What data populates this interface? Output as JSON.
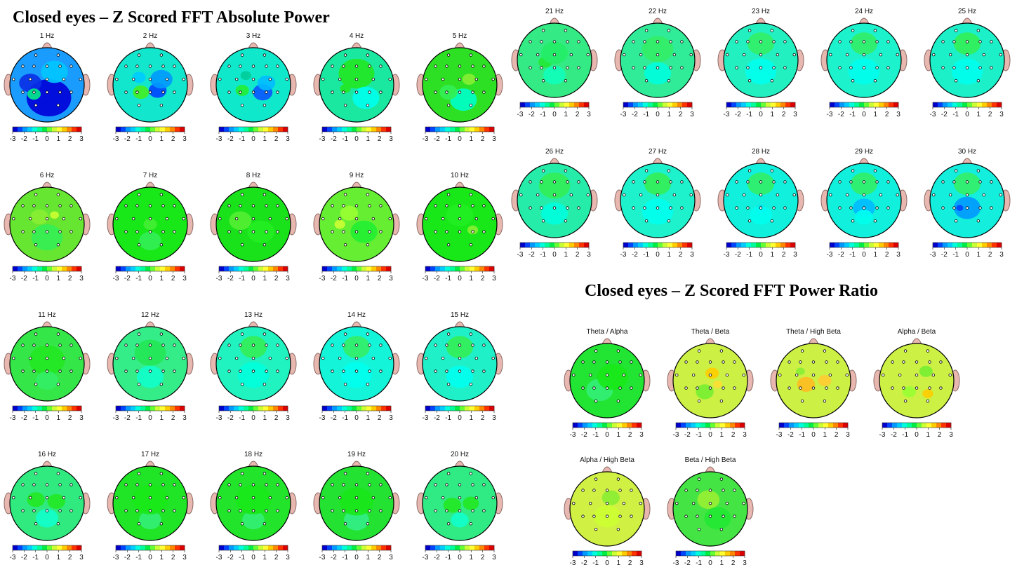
{
  "titles": {
    "absolute_power": "Closed eyes – Z Scored FFT Absolute Power",
    "power_ratio": "Closed eyes – Z Scored FFT Power Ratio"
  },
  "colorbar": {
    "ticks": [
      "-3",
      "-2",
      "-1",
      "0",
      "1",
      "2",
      "3"
    ],
    "colors": [
      "#0000cc",
      "#0044ff",
      "#0099ff",
      "#00ccff",
      "#00ffdd",
      "#00ff99",
      "#00ee44",
      "#66ff33",
      "#ccff33",
      "#ffff33",
      "#ffcc00",
      "#ff8800",
      "#ff3300",
      "#dd0000"
    ]
  },
  "colors": {
    "head_fill": "#22ee66",
    "head_outline": "#000000",
    "ear_fill": "#e8b8b0",
    "ear_outline": "#8a6b66",
    "electrode_fill": "#ffffff"
  },
  "absolute_power_maps": [
    {
      "label": "1 Hz",
      "base": "#1a9cff",
      "blobs": [
        {
          "c": "#0000d8",
          "dx": 0.05,
          "dy": 0.35,
          "r": 0.5
        },
        {
          "c": "#0a2fe6",
          "dx": -0.45,
          "dy": -0.05,
          "r": 0.25
        },
        {
          "c": "#00ee88",
          "dx": -0.35,
          "dy": 0.25,
          "r": 0.15
        },
        {
          "c": "#00c8ff",
          "dx": 0.2,
          "dy": -0.35,
          "r": 0.3
        }
      ]
    },
    {
      "label": "2 Hz",
      "base": "#12e6cc",
      "blobs": [
        {
          "c": "#0044ff",
          "dx": 0.2,
          "dy": 0.15,
          "r": 0.2
        },
        {
          "c": "#44ee22",
          "dx": -0.25,
          "dy": 0.2,
          "r": 0.18
        },
        {
          "c": "#0099ff",
          "dx": 0.3,
          "dy": -0.15,
          "r": 0.25
        },
        {
          "c": "#00ccff",
          "dx": -0.3,
          "dy": -0.2,
          "r": 0.15
        }
      ]
    },
    {
      "label": "3 Hz",
      "base": "#10e8cc",
      "blobs": [
        {
          "c": "#0a55ff",
          "dx": 0.25,
          "dy": 0.2,
          "r": 0.22
        },
        {
          "c": "#22ee33",
          "dx": -0.3,
          "dy": 0.15,
          "r": 0.15
        },
        {
          "c": "#00bbff",
          "dx": 0.35,
          "dy": -0.05,
          "r": 0.2
        },
        {
          "c": "#00cc99",
          "dx": -0.2,
          "dy": -0.25,
          "r": 0.12
        }
      ]
    },
    {
      "label": "4 Hz",
      "base": "#1ae8a0",
      "blobs": [
        {
          "c": "#22e822",
          "dx": 0.0,
          "dy": -0.3,
          "r": 0.4
        },
        {
          "c": "#00ffee",
          "dx": 0.25,
          "dy": 0.35,
          "r": 0.3
        },
        {
          "c": "#22e822",
          "dx": -0.3,
          "dy": 0.1,
          "r": 0.12
        }
      ]
    },
    {
      "label": "5 Hz",
      "base": "#2ee024",
      "blobs": [
        {
          "c": "#88ee33",
          "dx": 0.25,
          "dy": -0.15,
          "r": 0.15
        },
        {
          "c": "#00ffcc",
          "dx": 0.1,
          "dy": 0.4,
          "r": 0.3
        },
        {
          "c": "#33f055",
          "dx": -0.3,
          "dy": 0.2,
          "r": 0.2
        }
      ]
    },
    {
      "label": "6 Hz",
      "base": "#66e630",
      "blobs": [
        {
          "c": "#ccff33",
          "dx": 0.2,
          "dy": -0.25,
          "r": 0.1
        },
        {
          "c": "#33ee55",
          "dx": 0.0,
          "dy": 0.35,
          "r": 0.35
        },
        {
          "c": "#88ee33",
          "dx": -0.2,
          "dy": -0.2,
          "r": 0.2
        }
      ]
    },
    {
      "label": "7 Hz",
      "base": "#18e818",
      "blobs": [
        {
          "c": "#44ee33",
          "dx": 0.0,
          "dy": 0.0,
          "r": 0.15
        },
        {
          "c": "#33ee55",
          "dx": 0.0,
          "dy": 0.45,
          "r": 0.25
        }
      ]
    },
    {
      "label": "8 Hz",
      "base": "#1ae21a",
      "blobs": [
        {
          "c": "#55ee33",
          "dx": -0.35,
          "dy": -0.1,
          "r": 0.25
        },
        {
          "c": "#22ee22",
          "dx": 0.2,
          "dy": 0.2,
          "r": 0.3
        }
      ]
    },
    {
      "label": "9 Hz",
      "base": "#66ee33",
      "blobs": [
        {
          "c": "#ccff33",
          "dx": -0.45,
          "dy": 0.0,
          "r": 0.12
        },
        {
          "c": "#22ee33",
          "dx": 0.2,
          "dy": 0.2,
          "r": 0.3
        },
        {
          "c": "#99ff33",
          "dx": -0.2,
          "dy": -0.3,
          "r": 0.2
        }
      ]
    },
    {
      "label": "10 Hz",
      "base": "#18e818",
      "blobs": [
        {
          "c": "#88ee33",
          "dx": 0.35,
          "dy": 0.15,
          "r": 0.12
        },
        {
          "c": "#22ee22",
          "dx": 0.0,
          "dy": -0.25,
          "r": 0.3
        }
      ]
    },
    {
      "label": "11 Hz",
      "base": "#34e648",
      "blobs": [
        {
          "c": "#22e822",
          "dx": 0.0,
          "dy": -0.1,
          "r": 0.4
        },
        {
          "c": "#33ee66",
          "dx": 0.0,
          "dy": 0.45,
          "r": 0.25
        }
      ]
    },
    {
      "label": "12 Hz",
      "base": "#34ec88",
      "blobs": [
        {
          "c": "#22e855",
          "dx": 0.0,
          "dy": -0.3,
          "r": 0.35
        },
        {
          "c": "#11ffcc",
          "dx": 0.0,
          "dy": 0.35,
          "r": 0.3
        }
      ]
    },
    {
      "label": "13 Hz",
      "base": "#20f2c0",
      "blobs": [
        {
          "c": "#33ee55",
          "dx": 0.0,
          "dy": -0.45,
          "r": 0.3
        },
        {
          "c": "#00ffdd",
          "dx": 0.0,
          "dy": 0.3,
          "r": 0.35
        }
      ]
    },
    {
      "label": "14 Hz",
      "base": "#14f4d8",
      "blobs": [
        {
          "c": "#33ee66",
          "dx": 0.0,
          "dy": -0.45,
          "r": 0.3
        },
        {
          "c": "#00ffee",
          "dx": 0.0,
          "dy": 0.3,
          "r": 0.35
        }
      ]
    },
    {
      "label": "15 Hz",
      "base": "#20f0c8",
      "blobs": [
        {
          "c": "#33ee55",
          "dx": 0.0,
          "dy": -0.45,
          "r": 0.3
        },
        {
          "c": "#00ffee",
          "dx": 0.0,
          "dy": 0.35,
          "r": 0.3
        }
      ]
    },
    {
      "label": "16 Hz",
      "base": "#30ea80",
      "blobs": [
        {
          "c": "#22e822",
          "dx": -0.3,
          "dy": -0.1,
          "r": 0.2
        },
        {
          "c": "#22e822",
          "dx": 0.25,
          "dy": -0.05,
          "r": 0.2
        },
        {
          "c": "#11ffcc",
          "dx": 0.0,
          "dy": 0.4,
          "r": 0.25
        }
      ]
    },
    {
      "label": "17 Hz",
      "base": "#20e426",
      "blobs": [
        {
          "c": "#33ee77",
          "dx": 0.0,
          "dy": 0.45,
          "r": 0.25
        },
        {
          "c": "#18e818",
          "dx": 0.0,
          "dy": -0.1,
          "r": 0.4
        }
      ]
    },
    {
      "label": "18 Hz",
      "base": "#22e42a",
      "blobs": [
        {
          "c": "#33ee77",
          "dx": 0.0,
          "dy": 0.45,
          "r": 0.25
        },
        {
          "c": "#18e818",
          "dx": 0.0,
          "dy": -0.1,
          "r": 0.4
        }
      ]
    },
    {
      "label": "19 Hz",
      "base": "#24e232",
      "blobs": [
        {
          "c": "#33ee88",
          "dx": 0.0,
          "dy": 0.45,
          "r": 0.28
        },
        {
          "c": "#18e818",
          "dx": 0.0,
          "dy": -0.05,
          "r": 0.38
        }
      ]
    },
    {
      "label": "20 Hz",
      "base": "#30ea84",
      "blobs": [
        {
          "c": "#22e822",
          "dx": -0.2,
          "dy": 0.05,
          "r": 0.2
        },
        {
          "c": "#22e822",
          "dx": 0.3,
          "dy": 0.0,
          "r": 0.18
        },
        {
          "c": "#11ffcc",
          "dx": 0.0,
          "dy": 0.45,
          "r": 0.2
        }
      ]
    },
    {
      "label": "21 Hz",
      "base": "#34ea84",
      "blobs": [
        {
          "c": "#22e833",
          "dx": -0.25,
          "dy": 0.05,
          "r": 0.15
        },
        {
          "c": "#22ee66",
          "dx": 0.0,
          "dy": -0.2,
          "r": 0.3
        },
        {
          "c": "#11ffbb",
          "dx": 0.0,
          "dy": 0.4,
          "r": 0.25
        }
      ]
    },
    {
      "label": "22 Hz",
      "base": "#30ec98",
      "blobs": [
        {
          "c": "#33ee66",
          "dx": 0.0,
          "dy": -0.3,
          "r": 0.35
        },
        {
          "c": "#00ffdd",
          "dx": 0.0,
          "dy": 0.35,
          "r": 0.3
        }
      ]
    },
    {
      "label": "23 Hz",
      "base": "#22f0c0",
      "blobs": [
        {
          "c": "#33ee66",
          "dx": 0.0,
          "dy": -0.45,
          "r": 0.3
        },
        {
          "c": "#00ffee",
          "dx": 0.0,
          "dy": 0.3,
          "r": 0.35
        }
      ]
    },
    {
      "label": "24 Hz",
      "base": "#1cf2cc",
      "blobs": [
        {
          "c": "#33ee66",
          "dx": 0.0,
          "dy": -0.45,
          "r": 0.3
        },
        {
          "c": "#00ffee",
          "dx": 0.0,
          "dy": 0.3,
          "r": 0.35
        }
      ]
    },
    {
      "label": "25 Hz",
      "base": "#1cf0c8",
      "blobs": [
        {
          "c": "#33ee55",
          "dx": 0.0,
          "dy": -0.45,
          "r": 0.3
        },
        {
          "c": "#00ffee",
          "dx": 0.0,
          "dy": 0.3,
          "r": 0.35
        }
      ]
    },
    {
      "label": "26 Hz",
      "base": "#26ecaa",
      "blobs": [
        {
          "c": "#33ee55",
          "dx": 0.0,
          "dy": -0.4,
          "r": 0.35
        },
        {
          "c": "#00ffdd",
          "dx": 0.0,
          "dy": 0.35,
          "r": 0.3
        }
      ]
    },
    {
      "label": "27 Hz",
      "base": "#1ef2cc",
      "blobs": [
        {
          "c": "#33ee55",
          "dx": 0.0,
          "dy": -0.45,
          "r": 0.3
        },
        {
          "c": "#00ffee",
          "dx": 0.0,
          "dy": 0.3,
          "r": 0.35
        }
      ]
    },
    {
      "label": "28 Hz",
      "base": "#10f0dc",
      "blobs": [
        {
          "c": "#33ee66",
          "dx": 0.0,
          "dy": -0.45,
          "r": 0.3
        },
        {
          "c": "#00ccff",
          "dx": 0.0,
          "dy": 0.25,
          "r": 0.12
        },
        {
          "c": "#00ffee",
          "dx": 0.0,
          "dy": 0.4,
          "r": 0.25
        }
      ]
    },
    {
      "label": "29 Hz",
      "base": "#10f0dc",
      "blobs": [
        {
          "c": "#33ee66",
          "dx": 0.0,
          "dy": -0.45,
          "r": 0.3
        },
        {
          "c": "#00bbff",
          "dx": 0.0,
          "dy": 0.2,
          "r": 0.25
        },
        {
          "c": "#00ffee",
          "dx": 0.0,
          "dy": 0.45,
          "r": 0.2
        }
      ]
    },
    {
      "label": "30 Hz",
      "base": "#14eedc",
      "blobs": [
        {
          "c": "#33ee66",
          "dx": 0.0,
          "dy": -0.45,
          "r": 0.3
        },
        {
          "c": "#0099ff",
          "dx": 0.0,
          "dy": 0.2,
          "r": 0.3
        },
        {
          "c": "#0044ff",
          "dx": -0.2,
          "dy": 0.2,
          "r": 0.08
        }
      ]
    }
  ],
  "power_ratio_maps": [
    {
      "label": "Theta / Alpha",
      "base": "#22e433",
      "blobs": [
        {
          "c": "#33ee77",
          "dx": -0.2,
          "dy": 0.25,
          "r": 0.3
        },
        {
          "c": "#18e818",
          "dx": 0.15,
          "dy": -0.1,
          "r": 0.35
        }
      ]
    },
    {
      "label": "Theta / Beta",
      "base": "#ccf044",
      "blobs": [
        {
          "c": "#ffcc00",
          "dx": 0.05,
          "dy": -0.2,
          "r": 0.15
        },
        {
          "c": "#77ee33",
          "dx": -0.15,
          "dy": 0.3,
          "r": 0.2
        },
        {
          "c": "#ffdd33",
          "dx": 0.2,
          "dy": 0.1,
          "r": 0.1
        }
      ]
    },
    {
      "label": "Theta / High Beta",
      "base": "#ccf044",
      "blobs": [
        {
          "c": "#ffbb22",
          "dx": -0.2,
          "dy": 0.1,
          "r": 0.2
        },
        {
          "c": "#ffcc33",
          "dx": 0.3,
          "dy": 0.0,
          "r": 0.15
        },
        {
          "c": "#88ee33",
          "dx": -0.35,
          "dy": -0.25,
          "r": 0.1
        }
      ]
    },
    {
      "label": "Alpha / Beta",
      "base": "#ccf044",
      "blobs": [
        {
          "c": "#77ee33",
          "dx": 0.25,
          "dy": -0.25,
          "r": 0.15
        },
        {
          "c": "#ffcc00",
          "dx": 0.3,
          "dy": 0.35,
          "r": 0.12
        },
        {
          "c": "#99ff33",
          "dx": -0.2,
          "dy": 0.3,
          "r": 0.15
        }
      ]
    },
    {
      "label": "Alpha / High Beta",
      "base": "#d0f044",
      "blobs": [
        {
          "c": "#88ee33",
          "dx": 0.1,
          "dy": -0.3,
          "r": 0.2
        },
        {
          "c": "#ccff33",
          "dx": 0.0,
          "dy": 0.2,
          "r": 0.3
        }
      ]
    },
    {
      "label": "Beta / High Beta",
      "base": "#44e444",
      "blobs": [
        {
          "c": "#99ee33",
          "dx": -0.05,
          "dy": -0.25,
          "r": 0.25
        },
        {
          "c": "#22e833",
          "dx": 0.2,
          "dy": 0.25,
          "r": 0.3
        }
      ]
    }
  ]
}
